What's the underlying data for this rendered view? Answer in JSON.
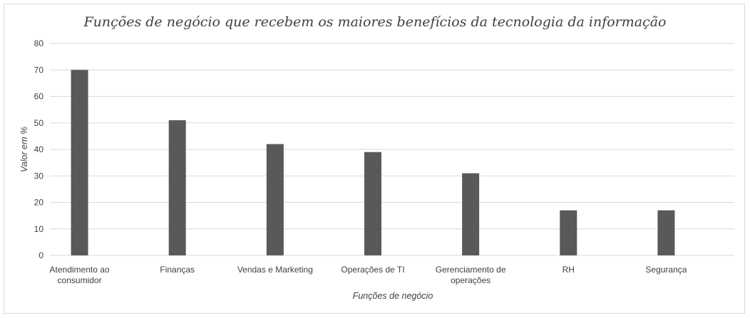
{
  "chart_data": {
    "type": "bar",
    "title": "Funções de negócio que recebem os maiores benefícios da tecnologia da informação",
    "xlabel": "Funções de negócio",
    "ylabel": "Valor em %",
    "categories": [
      [
        "Atendimento ao",
        "consumidor"
      ],
      [
        "Finanças"
      ],
      [
        "Vendas e Marketing"
      ],
      [
        "Operações de TI"
      ],
      [
        "Gerenciamento de",
        "operações"
      ],
      [
        "RH"
      ],
      [
        "Segurança"
      ]
    ],
    "values": [
      70,
      51,
      42,
      39,
      31,
      17,
      17
    ],
    "ylim": [
      0,
      80
    ],
    "yticks": [
      0,
      10,
      20,
      30,
      40,
      50,
      60,
      70,
      80
    ],
    "grid": true,
    "legend": "none",
    "bar_color": "#595959"
  }
}
